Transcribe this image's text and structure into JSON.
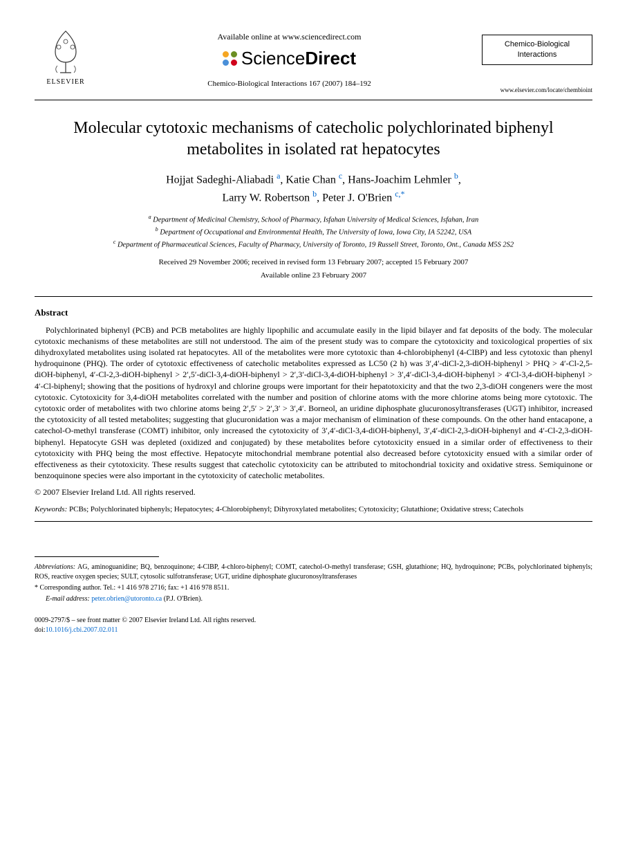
{
  "header": {
    "elsevier_label": "ELSEVIER",
    "available_online": "Available online at www.sciencedirect.com",
    "sd_science": "Science",
    "sd_direct": "Direct",
    "sd_dot_colors": [
      "#f5a623",
      "#6b8e23",
      "#4a90d9",
      "#d0021b"
    ],
    "journal_ref": "Chemico-Biological Interactions 167 (2007) 184–192",
    "journal_box_line1": "Chemico-Biological",
    "journal_box_line2": "Interactions",
    "locate_url": "www.elsevier.com/locate/chembioint"
  },
  "title": "Molecular cytotoxic mechanisms of catecholic polychlorinated biphenyl metabolites in isolated rat hepatocytes",
  "authors_html": "Hojjat Sadeghi-Aliabadi <sup class='aff'>a</sup>, Katie Chan <sup class='aff'>c</sup>, Hans-Joachim Lehmler <sup class='aff'>b</sup>,<br>Larry W. Robertson <sup class='aff'>b</sup>, Peter J. O'Brien <sup class='aff'>c,</sup><sup class='star'>*</sup>",
  "affiliations": [
    "a Department of Medicinal Chemistry, School of Pharmacy, Isfahan University of Medical Sciences, Isfahan, Iran",
    "b Department of Occupational and Environmental Health, The University of Iowa, Iowa City, IA 52242, USA",
    "c Department of Pharmaceutical Sciences, Faculty of Pharmacy, University of Toronto, 19 Russell Street, Toronto, Ont., Canada M5S 2S2"
  ],
  "dates": "Received 29 November 2006; received in revised form 13 February 2007; accepted 15 February 2007",
  "available_date": "Available online 23 February 2007",
  "abstract_heading": "Abstract",
  "abstract_body": "Polychlorinated biphenyl (PCB) and PCB metabolites are highly lipophilic and accumulate easily in the lipid bilayer and fat deposits of the body. The molecular cytotoxic mechanisms of these metabolites are still not understood. The aim of the present study was to compare the cytotoxicity and toxicological properties of six dihydroxylated metabolites using isolated rat hepatocytes. All of the metabolites were more cytotoxic than 4-chlorobiphenyl (4-ClBP) and less cytotoxic than phenyl hydroquinone (PHQ). The order of cytotoxic effectiveness of catecholic metabolites expressed as LC50 (2 h) was 3′,4′-diCl-2,3-diOH-biphenyl > PHQ > 4′-Cl-2,5-diOH-biphenyl, 4′-Cl-2,3-diOH-biphenyl > 2′,5′-diCl-3,4-diOH-biphenyl > 2′,3′-diCl-3,4-diOH-biphenyl > 3′,4′-diCl-3,4-diOH-biphenyl > 4′Cl-3,4-diOH-biphenyl > 4′-Cl-biphenyl; showing that the positions of hydroxyl and chlorine groups were important for their hepatotoxicity and that the two 2,3-diOH congeners were the most cytotoxic. Cytotoxicity for 3,4-diOH metabolites correlated with the number and position of chlorine atoms with the more chlorine atoms being more cytotoxic. The cytotoxic order of metabolites with two chlorine atoms being 2′,5′ > 2′,3′ > 3′,4′. Borneol, an uridine diphosphate glucuronosyltransferases (UGT) inhibitor, increased the cytotoxicity of all tested metabolites; suggesting that glucuronidation was a major mechanism of elimination of these compounds. On the other hand entacapone, a catechol-O-methyl transferase (COMT) inhibitor, only increased the cytotoxicity of 3′,4′-diCl-3,4-diOH-biphenyl, 3′,4′-diCl-2,3-diOH-biphenyl and 4′-Cl-2,3-diOH-biphenyl. Hepatocyte GSH was depleted (oxidized and conjugated) by these metabolites before cytotoxicity ensued in a similar order of effectiveness to their cytotoxicity with PHQ being the most effective. Hepatocyte mitochondrial membrane potential also decreased before cytotoxicity ensued with a similar order of effectiveness as their cytotoxicity. These results suggest that catecholic cytotoxicity can be attributed to mitochondrial toxicity and oxidative stress. Semiquinone or benzoquinone species were also important in the cytotoxicity of catecholic metabolites.",
  "copyright": "© 2007 Elsevier Ireland Ltd. All rights reserved.",
  "keywords_label": "Keywords:",
  "keywords_text": " PCBs; Polychlorinated biphenyls; Hepatocytes; 4-Chlorobiphenyl; Dihyroxylated metabolites; Cytotoxicity; Glutathione; Oxidative stress; Catechols",
  "abbrev_label": "Abbreviations:",
  "abbrev_text": " AG, aminoguanidine; BQ, benzoquinone; 4-ClBP, 4-chloro-biphenyl; COMT, catechol-O-methyl transferase; GSH, glutathione; HQ, hydroquinone; PCBs, polychlorinated biphenyls; ROS, reactive oxygen species; SULT, cytosolic sulfotransferase; UGT, uridine diphosphate glucuronosyltransferases",
  "corr_text": "* Corresponding author. Tel.: +1 416 978 2716; fax: +1 416 978 8511.",
  "email_label": "E-mail address:",
  "email_link": "peter.obrien@utoronto.ca",
  "email_paren": " (P.J. O'Brien).",
  "footer": "0009-2797/$ – see front matter © 2007 Elsevier Ireland Ltd. All rights reserved.",
  "doi_prefix": "doi:",
  "doi_link": "10.1016/j.cbi.2007.02.011",
  "colors": {
    "link": "#0066cc",
    "text": "#000000",
    "bg": "#ffffff"
  },
  "typography": {
    "title_fontsize": 24,
    "author_fontsize": 16,
    "body_fontsize": 12,
    "small_fontsize": 10
  }
}
